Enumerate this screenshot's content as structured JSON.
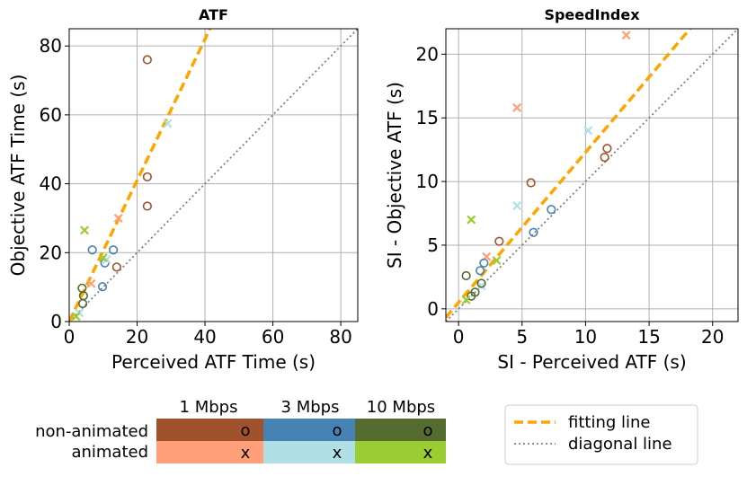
{
  "colors": {
    "mbps1_non_animated": "#a0522d",
    "mbps1_animated": "#ffa07a",
    "mbps3_non_animated": "#4682b4",
    "mbps3_animated": "#b0e0e6",
    "mbps10_non_animated": "#556b2f",
    "mbps10_animated": "#9acd32",
    "fitting_line": "#ffa500",
    "diagonal_line": "#808080",
    "grid": "#b0b0b0"
  },
  "chart_data": [
    {
      "type": "scatter",
      "title": "ATF",
      "xlabel": "Perceived ATF Time (s)",
      "ylabel": "Objective ATF Time (s)",
      "xlim": [
        0,
        85
      ],
      "ylim": [
        0,
        85
      ],
      "xticks": [
        0,
        20,
        40,
        60,
        80
      ],
      "yticks": [
        0,
        20,
        40,
        60,
        80
      ],
      "grid": true,
      "fit_line": {
        "slope": 2.05,
        "intercept": 0
      },
      "diagonal": true,
      "series": [
        {
          "name": "1 Mbps non-animated",
          "marker": "o",
          "color_key": "mbps1_non_animated",
          "points": [
            [
              23,
              76
            ],
            [
              23,
              42
            ],
            [
              23,
              33.5
            ],
            [
              14,
              15.8
            ]
          ]
        },
        {
          "name": "1 Mbps animated",
          "marker": "x",
          "color_key": "mbps1_animated",
          "points": [
            [
              14.5,
              30
            ],
            [
              6.5,
              11
            ]
          ]
        },
        {
          "name": "3 Mbps non-animated",
          "marker": "o",
          "color_key": "mbps3_non_animated",
          "points": [
            [
              6.8,
              20.8
            ],
            [
              13,
              20.8
            ],
            [
              10.5,
              17
            ],
            [
              9.8,
              10.1
            ]
          ]
        },
        {
          "name": "3 Mbps animated",
          "marker": "x",
          "color_key": "mbps3_animated",
          "points": [
            [
              29,
              57.5
            ],
            [
              11,
              18
            ],
            [
              3,
              2.5
            ]
          ]
        },
        {
          "name": "10 Mbps non-animated",
          "marker": "o",
          "color_key": "mbps10_non_animated",
          "points": [
            [
              3.8,
              9.7
            ],
            [
              4.2,
              7.5
            ],
            [
              4,
              5.2
            ]
          ]
        },
        {
          "name": "10 Mbps animated",
          "marker": "x",
          "color_key": "mbps10_animated",
          "points": [
            [
              4.5,
              26.5
            ],
            [
              10,
              18.5
            ],
            [
              2,
              1.5
            ]
          ]
        }
      ]
    },
    {
      "type": "scatter",
      "title": "SpeedIndex",
      "xlabel": "SI - Perceived ATF (s)",
      "ylabel": "SI - Objective ATF (s)",
      "xlim": [
        -1,
        22
      ],
      "ylim": [
        -1,
        22
      ],
      "xticks": [
        0,
        5,
        10,
        15,
        20
      ],
      "yticks": [
        0,
        5,
        10,
        15,
        20
      ],
      "grid": true,
      "fit_line": {
        "slope": 1.18,
        "intercept": 0.5
      },
      "diagonal": true,
      "series": [
        {
          "name": "1 Mbps non-animated",
          "marker": "o",
          "color_key": "mbps1_non_animated",
          "points": [
            [
              5.7,
              9.9
            ],
            [
              11.7,
              12.6
            ],
            [
              11.5,
              11.9
            ],
            [
              3.2,
              5.3
            ]
          ]
        },
        {
          "name": "1 Mbps animated",
          "marker": "x",
          "color_key": "mbps1_animated",
          "points": [
            [
              13.2,
              21.5
            ],
            [
              4.6,
              15.8
            ],
            [
              2.2,
              4.1
            ]
          ]
        },
        {
          "name": "3 Mbps non-animated",
          "marker": "o",
          "color_key": "mbps3_non_animated",
          "points": [
            [
              7.3,
              7.8
            ],
            [
              5.9,
              6
            ],
            [
              2,
              3.6
            ],
            [
              1.7,
              3
            ]
          ]
        },
        {
          "name": "3 Mbps animated",
          "marker": "x",
          "color_key": "mbps3_animated",
          "points": [
            [
              4.6,
              8.1
            ],
            [
              10.2,
              14
            ],
            [
              1.8,
              1.8
            ]
          ]
        },
        {
          "name": "10 Mbps non-animated",
          "marker": "o",
          "color_key": "mbps10_non_animated",
          "points": [
            [
              0.6,
              2.6
            ],
            [
              1.8,
              2
            ],
            [
              1.3,
              1.3
            ],
            [
              1,
              1
            ]
          ]
        },
        {
          "name": "10 Mbps animated",
          "marker": "x",
          "color_key": "mbps10_animated",
          "points": [
            [
              1,
              7
            ],
            [
              3,
              3.8
            ],
            [
              0.6,
              0.7
            ]
          ]
        }
      ]
    }
  ],
  "legend_table": {
    "columns": [
      "1 Mbps",
      "3 Mbps",
      "10 Mbps"
    ],
    "rows": [
      {
        "label": "non-animated",
        "marker": "o",
        "color_keys": [
          "mbps1_non_animated",
          "mbps3_non_animated",
          "mbps10_non_animated"
        ]
      },
      {
        "label": "animated",
        "marker": "x",
        "color_keys": [
          "mbps1_animated",
          "mbps3_animated",
          "mbps10_animated"
        ]
      }
    ]
  },
  "line_legend": {
    "fitting": "fitting line",
    "diagonal": "diagonal line"
  }
}
